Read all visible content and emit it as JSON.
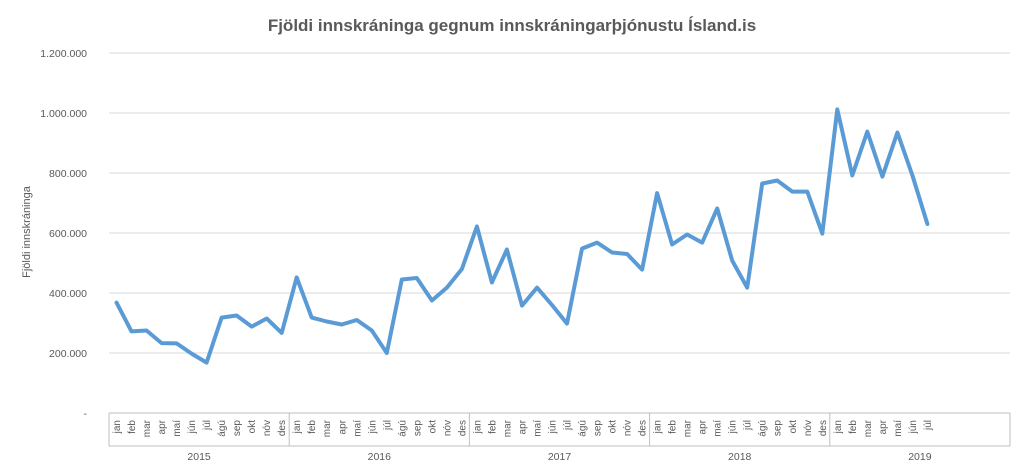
{
  "colors": {
    "series": "#5b9bd5",
    "text": "#595959"
  },
  "chart_data": {
    "type": "line",
    "title": "Fjöldi innskráninga  gegnum innskráningarþjónustu  Ísland.is",
    "ylabel": "Fjöldi innskráninga",
    "xlabel": "",
    "ylim": [
      0,
      1200000
    ],
    "yticks": [
      0,
      200000,
      400000,
      600000,
      800000,
      1000000,
      1200000
    ],
    "ytick_labels": [
      "-",
      "200.000",
      "400.000",
      "600.000",
      "800.000",
      "1.000.000",
      "1.200.000"
    ],
    "grid": true,
    "legend": "none",
    "years": [
      {
        "label": "2015",
        "months": [
          "jan",
          "feb",
          "mar",
          "apr",
          "maí",
          "jún",
          "júl",
          "ágú",
          "sep",
          "okt",
          "nóv",
          "des"
        ]
      },
      {
        "label": "2016",
        "months": [
          "jan",
          "feb",
          "mar",
          "apr",
          "maí",
          "jún",
          "júl",
          "ágú",
          "sep",
          "okt",
          "nóv",
          "des"
        ]
      },
      {
        "label": "2017",
        "months": [
          "jan",
          "feb",
          "mar",
          "apr",
          "maí",
          "jún",
          "júl",
          "ágú",
          "sep",
          "okt",
          "nóv",
          "des"
        ]
      },
      {
        "label": "2018",
        "months": [
          "jan",
          "feb",
          "mar",
          "apr",
          "maí",
          "jún",
          "júl",
          "ágú",
          "sep",
          "okt",
          "nóv",
          "des"
        ]
      },
      {
        "label": "2019",
        "months": [
          "jan",
          "feb",
          "mar",
          "apr",
          "maí",
          "jún",
          "júl"
        ]
      }
    ],
    "series": [
      {
        "values": [
          368000,
          272000,
          275000,
          233000,
          232000,
          198000,
          168000,
          318000,
          325000,
          288000,
          315000,
          267000,
          452000,
          318000,
          305000,
          295000,
          310000,
          275000,
          200000,
          445000,
          450000,
          375000,
          418000,
          480000,
          622000,
          435000,
          545000,
          358000,
          418000,
          360000,
          298000,
          548000,
          568000,
          535000,
          530000,
          478000,
          733000,
          562000,
          595000,
          568000,
          682000,
          508000,
          418000,
          765000,
          775000,
          738000,
          738000,
          598000,
          1012000,
          792000,
          938000,
          788000,
          935000,
          792000,
          630000
        ]
      }
    ]
  }
}
